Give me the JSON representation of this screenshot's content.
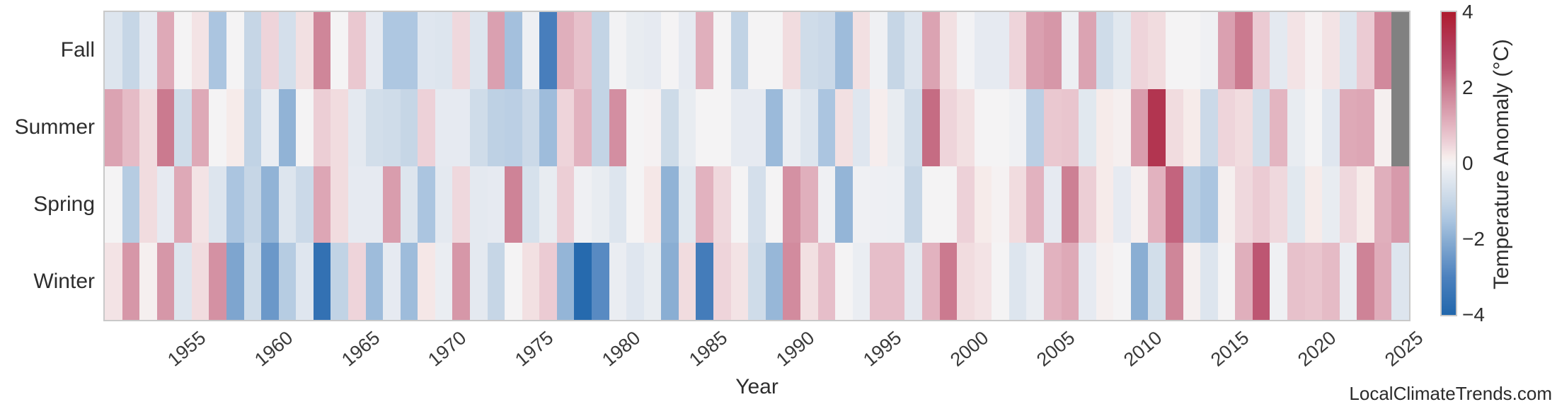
{
  "watermark": "LocalClimateTrends.com",
  "chart_data": {
    "type": "heatmap",
    "xlabel": "Year",
    "colorbar_label": "Temperature Anomaly (°C)",
    "rows": [
      "Fall",
      "Summer",
      "Spring",
      "Winter"
    ],
    "year_start": 1950,
    "year_end": 2024,
    "x_tick_labels": [
      "1955",
      "1960",
      "1965",
      "1970",
      "1975",
      "1980",
      "1985",
      "1990",
      "1995",
      "2000",
      "2005",
      "2010",
      "2015",
      "2020",
      "2025"
    ],
    "colorbar_ticks": [
      {
        "value": 4,
        "label": "4"
      },
      {
        "value": 2,
        "label": "2"
      },
      {
        "value": 0,
        "label": "0"
      },
      {
        "value": -2,
        "label": "−2"
      },
      {
        "value": -4,
        "label": "−4"
      }
    ],
    "vmin": -4,
    "vmax": 4,
    "grid": false,
    "missing_color": "#818181",
    "missing_cells": [
      [
        "Fall",
        2024
      ],
      [
        "Summer",
        2024
      ]
    ],
    "colorscale": [
      [
        -4.0,
        "#2267ac"
      ],
      [
        -3.0,
        "#4c81be"
      ],
      [
        -2.0,
        "#8aaed3"
      ],
      [
        -1.5,
        "#abc5e0"
      ],
      [
        -1.0,
        "#c6d6e6"
      ],
      [
        -0.5,
        "#dde5ee"
      ],
      [
        -0.2,
        "#eaedf2"
      ],
      [
        0.0,
        "#f4f3f4"
      ],
      [
        0.2,
        "#f6ebea"
      ],
      [
        0.5,
        "#eed4da"
      ],
      [
        1.0,
        "#e3b5c1"
      ],
      [
        1.5,
        "#d697a8"
      ],
      [
        2.0,
        "#cb7a8f"
      ],
      [
        2.5,
        "#bd5672"
      ],
      [
        3.0,
        "#b4405f"
      ],
      [
        4.0,
        "#ae1b2e"
      ]
    ],
    "series": [
      {
        "name": "Fall",
        "values": [
          -0.5,
          -1.0,
          -0.3,
          1.2,
          0,
          0.3,
          -1.5,
          0,
          -1.0,
          0.5,
          -0.7,
          0.35,
          1.8,
          0,
          0.7,
          -0.3,
          -1.45,
          -1.45,
          -0.45,
          -0.5,
          0.45,
          -0.5,
          1.35,
          -1.6,
          -0.15,
          -3.1,
          1.1,
          0.8,
          -1.05,
          -0.05,
          -0.25,
          -0.3,
          0,
          -0.3,
          1.1,
          0,
          -1.1,
          0,
          0,
          0.4,
          -0.8,
          -0.9,
          -1.7,
          0.35,
          -0.1,
          -1.0,
          -0.5,
          1.3,
          0.35,
          -0.05,
          -0.3,
          -0.3,
          0.5,
          1.35,
          1.5,
          -0.15,
          1.3,
          -0.8,
          -0.4,
          0.5,
          0.4,
          0,
          0,
          -0.1,
          1.35,
          2.0,
          0.65,
          -0.35,
          0.3,
          0.05,
          0.3,
          -0.5,
          0.65,
          1.75,
          null
        ]
      },
      {
        "name": "Summer",
        "values": [
          1.3,
          0.9,
          0.4,
          2.0,
          -0.8,
          1.2,
          0,
          0.2,
          -1.1,
          -0.2,
          -1.9,
          0,
          0.6,
          0.4,
          -0.35,
          -0.75,
          -0.8,
          -1.0,
          0.55,
          -0.3,
          -0.3,
          -0.8,
          -1.15,
          -1.2,
          -0.9,
          -1.7,
          0.5,
          1.05,
          -1.05,
          1.65,
          0,
          0.05,
          -0.85,
          -0.25,
          0,
          0,
          -0.3,
          -0.3,
          -1.75,
          -0.2,
          -0.5,
          -1.5,
          0.35,
          -0.45,
          0.15,
          -0.25,
          -0.8,
          2.2,
          0.5,
          0.35,
          0,
          0,
          -0.1,
          -1.2,
          0.7,
          0.75,
          -0.4,
          0.2,
          0.1,
          1.4,
          3.3,
          0.4,
          0.2,
          -0.9,
          0.5,
          0.4,
          -0.75,
          1.0,
          -0.25,
          0,
          -0.45,
          1.2,
          1.25,
          0.1,
          null
        ]
      },
      {
        "name": "Spring",
        "values": [
          0,
          -1.3,
          0.4,
          -0.3,
          1.2,
          0.3,
          -0.5,
          -1.5,
          -1.0,
          -1.9,
          -0.5,
          -0.9,
          1.25,
          0.4,
          -0.3,
          -0.3,
          1.4,
          -0.5,
          -1.5,
          -0.35,
          0.45,
          -0.35,
          -0.3,
          1.85,
          -0.65,
          -0.25,
          0.6,
          -0.1,
          -0.25,
          -0.5,
          0,
          0.25,
          -1.9,
          -0.4,
          1.05,
          0.45,
          0,
          -0.7,
          0,
          1.6,
          1.1,
          -0.1,
          -1.85,
          -0.1,
          -0.12,
          -0.15,
          -1.0,
          0,
          0,
          0.55,
          0.2,
          0.05,
          0.4,
          1.05,
          -0.3,
          1.9,
          0.6,
          0.2,
          -0.3,
          0.1,
          1.05,
          2.3,
          -1.25,
          -1.5,
          0.1,
          0.45,
          0.65,
          0.45,
          -0.4,
          0.2,
          -0.25,
          0.45,
          0.2,
          1.1,
          1.45
        ]
      },
      {
        "name": "Winter",
        "values": [
          0.3,
          1.5,
          0.1,
          1.5,
          -0.5,
          0.4,
          1.6,
          -2.2,
          -0.8,
          -2.5,
          -1.3,
          -0.45,
          -3.6,
          -1.1,
          0.5,
          -1.7,
          -0.3,
          -1.7,
          0.25,
          -0.2,
          1.5,
          -0.35,
          -1.0,
          0,
          0.35,
          0.65,
          -1.85,
          -3.9,
          -2.8,
          -0.2,
          -0.45,
          -0.25,
          -2.0,
          0.4,
          -3.2,
          0.5,
          0.3,
          -0.8,
          -1.8,
          1.7,
          0.35,
          0.85,
          0,
          -0.2,
          0.85,
          0.85,
          -0.35,
          1.05,
          2.0,
          0.4,
          0.3,
          0,
          -0.5,
          -0.2,
          1.05,
          1.2,
          -0.3,
          0.1,
          0,
          -2.0,
          -0.75,
          1.8,
          0.1,
          -0.5,
          0,
          1.1,
          2.5,
          -0.1,
          0.8,
          0.75,
          0.9,
          -0.2,
          1.85,
          1.15,
          -0.5
        ]
      }
    ]
  }
}
